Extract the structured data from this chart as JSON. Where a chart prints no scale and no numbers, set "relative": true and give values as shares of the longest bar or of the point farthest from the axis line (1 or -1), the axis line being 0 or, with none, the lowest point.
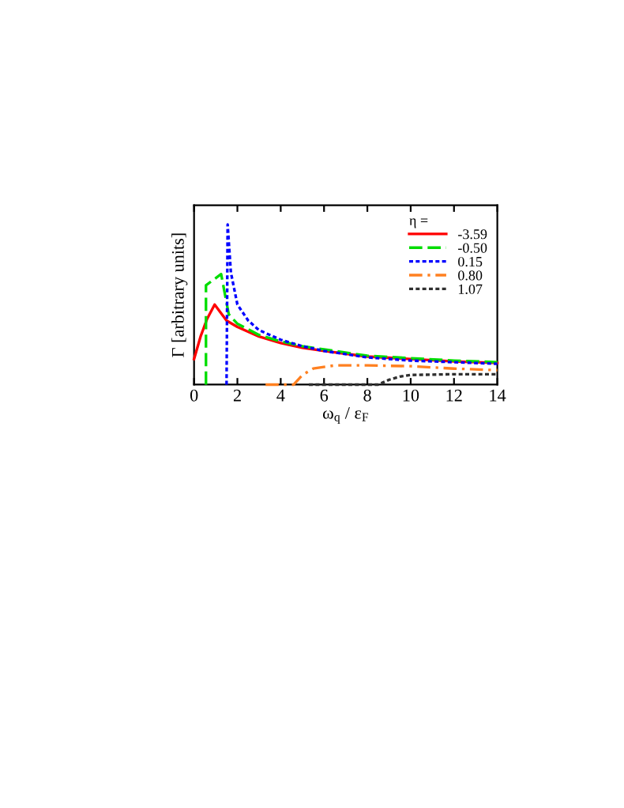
{
  "chart_data": {
    "type": "line",
    "relative": true,
    "xlabel": "ω$_{q}$ / ε$_{F}$",
    "ylabel": "Γ [arbitrary units]",
    "legend_title": "η =",
    "legend": "top right",
    "grid": false,
    "xlim": [
      0,
      14
    ],
    "xticks": [
      0,
      2,
      4,
      6,
      8,
      10,
      12,
      14
    ],
    "series": [
      {
        "name": "-3.59",
        "color": "#ff0000",
        "line_style": "solid",
        "x": [
          0,
          0.3,
          0.6,
          0.95,
          1.5,
          2,
          3,
          4,
          5,
          6,
          8,
          10,
          12,
          14
        ],
        "values": [
          0.16,
          0.3,
          0.41,
          0.5,
          0.4,
          0.36,
          0.3,
          0.26,
          0.23,
          0.21,
          0.175,
          0.16,
          0.145,
          0.135
        ]
      },
      {
        "name": "-0.50",
        "color": "#00dd00",
        "line_style": "dashed",
        "x": [
          0.55,
          0.55,
          1.25,
          1.6,
          2,
          3,
          4,
          5,
          6,
          8,
          10,
          12,
          14
        ],
        "values": [
          0,
          0.62,
          0.69,
          0.44,
          0.38,
          0.31,
          0.27,
          0.24,
          0.22,
          0.18,
          0.165,
          0.15,
          0.14
        ]
      },
      {
        "name": "0.15",
        "color": "#0000ff",
        "line_style": "dotted",
        "x": [
          1.5,
          1.55,
          1.7,
          2,
          2.5,
          3,
          4,
          5,
          6,
          8,
          10,
          12,
          14
        ],
        "values": [
          0,
          1,
          0.7,
          0.5,
          0.4,
          0.34,
          0.28,
          0.24,
          0.21,
          0.17,
          0.15,
          0.14,
          0.13
        ]
      },
      {
        "name": "0.80",
        "color": "#ff8020",
        "line_style": "dashdot",
        "x": [
          3.3,
          4.6,
          5,
          5.5,
          6.5,
          8,
          10,
          12,
          14
        ],
        "values": [
          0,
          0,
          0.06,
          0.1,
          0.12,
          0.12,
          0.115,
          0.1,
          0.09
        ]
      },
      {
        "name": "1.07",
        "color": "#303030",
        "line_style": "dotted",
        "x": [
          5.3,
          8.5,
          9,
          9.5,
          10,
          12,
          14
        ],
        "values": [
          0,
          0,
          0.03,
          0.05,
          0.06,
          0.065,
          0.065
        ]
      }
    ]
  }
}
